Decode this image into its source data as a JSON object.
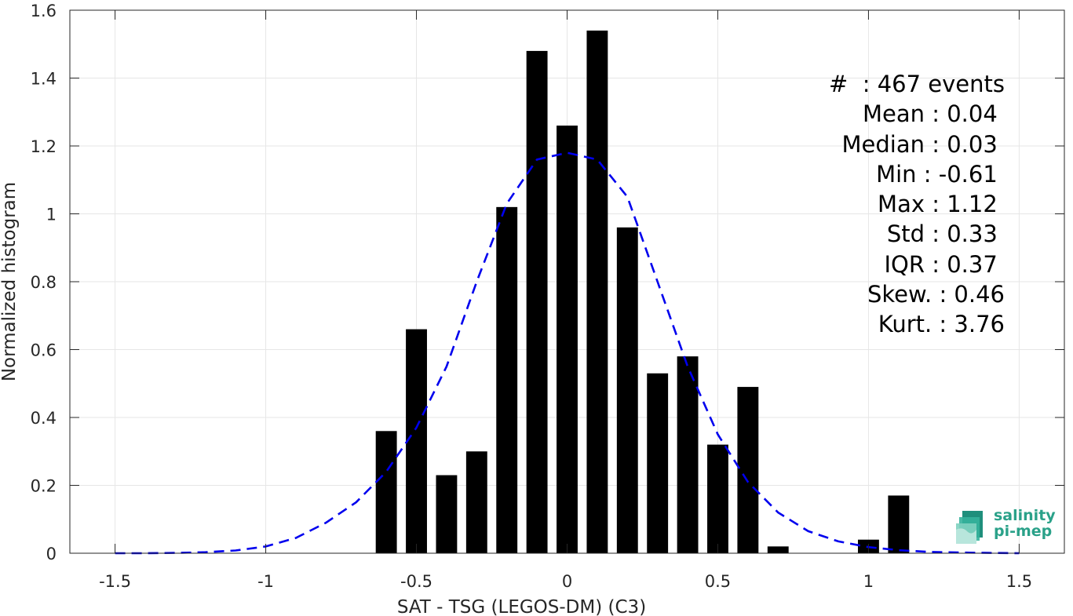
{
  "chart_data": {
    "type": "bar",
    "xlabel": "SAT - TSG (LEGOS-DM) (C3)",
    "ylabel": "Normalized histogram",
    "xlim": [
      -1.65,
      1.65
    ],
    "ylim": [
      0,
      1.6
    ],
    "xticks": [
      -1.5,
      -1,
      -0.5,
      0,
      0.5,
      1,
      1.5
    ],
    "xtick_labels": [
      "-1.5",
      "-1",
      "-0.5",
      "0",
      "0.5",
      "1",
      "1.5"
    ],
    "yticks": [
      0,
      0.2,
      0.4,
      0.6,
      0.8,
      1,
      1.2,
      1.4,
      1.6
    ],
    "ytick_labels": [
      "0",
      "0.2",
      "0.4",
      "0.6",
      "0.8",
      "1",
      "1.2",
      "1.4",
      "1.6"
    ],
    "grid": true,
    "bar_width": 0.07,
    "bars": [
      {
        "x": -0.6,
        "y": 0.36
      },
      {
        "x": -0.5,
        "y": 0.66
      },
      {
        "x": -0.4,
        "y": 0.23
      },
      {
        "x": -0.3,
        "y": 0.3
      },
      {
        "x": -0.2,
        "y": 1.02
      },
      {
        "x": -0.1,
        "y": 1.48
      },
      {
        "x": 0.0,
        "y": 1.26
      },
      {
        "x": 0.1,
        "y": 1.54
      },
      {
        "x": 0.2,
        "y": 0.96
      },
      {
        "x": 0.3,
        "y": 0.53
      },
      {
        "x": 0.4,
        "y": 0.58
      },
      {
        "x": 0.5,
        "y": 0.32
      },
      {
        "x": 0.6,
        "y": 0.49
      },
      {
        "x": 0.7,
        "y": 0.02
      },
      {
        "x": 1.0,
        "y": 0.04
      },
      {
        "x": 1.1,
        "y": 0.17
      }
    ],
    "fit_curve": {
      "style": "dashed",
      "color": "#0000ee",
      "x": [
        -1.5,
        -1.4,
        -1.3,
        -1.2,
        -1.1,
        -1.0,
        -0.9,
        -0.8,
        -0.7,
        -0.6,
        -0.5,
        -0.4,
        -0.3,
        -0.2,
        -0.1,
        0.0,
        0.1,
        0.2,
        0.3,
        0.4,
        0.5,
        0.6,
        0.7,
        0.8,
        0.9,
        1.0,
        1.1,
        1.2,
        1.3,
        1.4,
        1.5
      ],
      "y": [
        0.0,
        0.0,
        0.001,
        0.003,
        0.008,
        0.02,
        0.045,
        0.09,
        0.15,
        0.24,
        0.37,
        0.55,
        0.8,
        1.03,
        1.16,
        1.18,
        1.16,
        1.05,
        0.8,
        0.55,
        0.35,
        0.21,
        0.12,
        0.065,
        0.035,
        0.018,
        0.009,
        0.004,
        0.002,
        0.001,
        0.0
      ]
    },
    "colors": {
      "bars": "#000000",
      "fit": "#0000ee",
      "grid": "#e6e6e6",
      "axis": "#262626"
    }
  },
  "stats": [
    "#  : 467 events",
    "Mean : 0.04 ",
    "Median : 0.03 ",
    "Min : -0.61 ",
    "Max : 1.12 ",
    "Std : 0.33 ",
    "IQR : 0.37 ",
    "Skew. : 0.46",
    "Kurt. : 3.76"
  ],
  "logo": {
    "line1": "salinity",
    "line2": "pi-mep",
    "color": "#2aa189"
  }
}
